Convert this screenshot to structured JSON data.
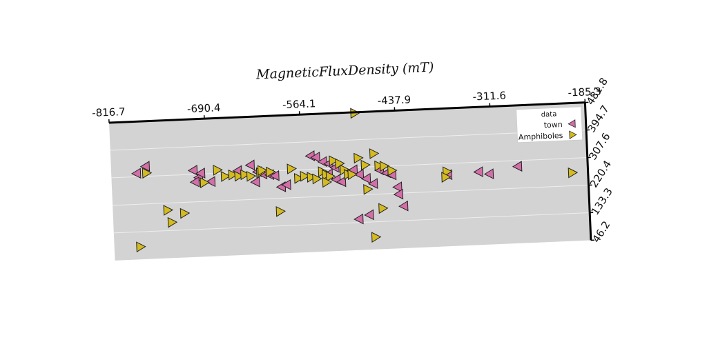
{
  "chart_data": {
    "type": "scatter",
    "title": "MagneticFluxDensity (mT)",
    "xlabel": "",
    "ylabel": "",
    "xlim": [
      -816.7,
      -185.3
    ],
    "ylim": [
      46.2,
      481.8
    ],
    "x_ticks": [
      "-816.7",
      "-690.4",
      "-564.1",
      "-437.9",
      "-311.6",
      "-185.3"
    ],
    "y_ticks": [
      "481.8",
      "394.7",
      "307.6",
      "220.4",
      "133.3",
      "46.2"
    ],
    "x_axis_position": "top",
    "y_axis_position": "right",
    "grid": true,
    "background": "#d3d3d3",
    "legend": {
      "title": "data",
      "placement": "top-right"
    },
    "series": [
      {
        "name": "town",
        "marker": "triangle-left",
        "color": "#d36ea8",
        "points": [
          {
            "x": -783,
            "y": 318
          },
          {
            "x": -771,
            "y": 339
          },
          {
            "x": -708,
            "y": 320
          },
          {
            "x": -701,
            "y": 297
          },
          {
            "x": -706,
            "y": 283
          },
          {
            "x": -698,
            "y": 310
          },
          {
            "x": -685,
            "y": 282
          },
          {
            "x": -649,
            "y": 313
          },
          {
            "x": -632,
            "y": 329
          },
          {
            "x": -623,
            "y": 307
          },
          {
            "x": -626,
            "y": 275
          },
          {
            "x": -616,
            "y": 299
          },
          {
            "x": -607,
            "y": 296
          },
          {
            "x": -600,
            "y": 292
          },
          {
            "x": -592,
            "y": 256
          },
          {
            "x": -585,
            "y": 262
          },
          {
            "x": -552,
            "y": 350
          },
          {
            "x": -545,
            "y": 345
          },
          {
            "x": -536,
            "y": 330
          },
          {
            "x": -528,
            "y": 323
          },
          {
            "x": -520,
            "y": 310
          },
          {
            "x": -529,
            "y": 290
          },
          {
            "x": -519,
            "y": 272
          },
          {
            "x": -512,
            "y": 264
          },
          {
            "x": -496,
            "y": 300
          },
          {
            "x": -488,
            "y": 285
          },
          {
            "x": -479,
            "y": 271
          },
          {
            "x": -470,
            "y": 254
          },
          {
            "x": -461,
            "y": 296
          },
          {
            "x": -452,
            "y": 286
          },
          {
            "x": -445,
            "y": 279
          },
          {
            "x": -438,
            "y": 240
          },
          {
            "x": -437,
            "y": 217
          },
          {
            "x": -431,
            "y": 179
          },
          {
            "x": -477,
            "y": 156
          },
          {
            "x": -491,
            "y": 144
          },
          {
            "x": -371,
            "y": 272
          },
          {
            "x": -330,
            "y": 277
          },
          {
            "x": -316,
            "y": 269
          },
          {
            "x": -278,
            "y": 289
          }
        ]
      },
      {
        "name": "Amphiboles",
        "marker": "triangle-right",
        "color": "#d4bb1f",
        "points": [
          {
            "x": -770,
            "y": 318
          },
          {
            "x": -782,
            "y": 86
          },
          {
            "x": -744,
            "y": 198
          },
          {
            "x": -739,
            "y": 159
          },
          {
            "x": -722,
            "y": 186
          },
          {
            "x": -694,
            "y": 280
          },
          {
            "x": -676,
            "y": 318
          },
          {
            "x": -666,
            "y": 297
          },
          {
            "x": -656,
            "y": 301
          },
          {
            "x": -648,
            "y": 296
          },
          {
            "x": -640,
            "y": 300
          },
          {
            "x": -632,
            "y": 294
          },
          {
            "x": -619,
            "y": 304
          },
          {
            "x": -617,
            "y": 311
          },
          {
            "x": -606,
            "y": 305
          },
          {
            "x": -595,
            "y": 179
          },
          {
            "x": -578,
            "y": 312
          },
          {
            "x": -569,
            "y": 281
          },
          {
            "x": -561,
            "y": 287
          },
          {
            "x": -552,
            "y": 283
          },
          {
            "x": -545,
            "y": 277
          },
          {
            "x": -537,
            "y": 299
          },
          {
            "x": -532,
            "y": 289
          },
          {
            "x": -527,
            "y": 283
          },
          {
            "x": -522,
            "y": 332
          },
          {
            "x": -514,
            "y": 322
          },
          {
            "x": -508,
            "y": 302
          },
          {
            "x": -503,
            "y": 287
          },
          {
            "x": -498,
            "y": 286
          },
          {
            "x": -491,
            "y": 479
          },
          {
            "x": -489,
            "y": 337
          },
          {
            "x": -480,
            "y": 314
          },
          {
            "x": -478,
            "y": 237
          },
          {
            "x": -470,
            "y": 85
          },
          {
            "x": -468,
            "y": 349
          },
          {
            "x": -462,
            "y": 310
          },
          {
            "x": -455,
            "y": 308
          },
          {
            "x": -445,
            "y": 293
          },
          {
            "x": -459,
            "y": 175
          },
          {
            "x": -372,
            "y": 282
          },
          {
            "x": -374,
            "y": 265
          },
          {
            "x": -532,
            "y": 265
          },
          {
            "x": -206,
            "y": 262
          }
        ]
      }
    ]
  }
}
